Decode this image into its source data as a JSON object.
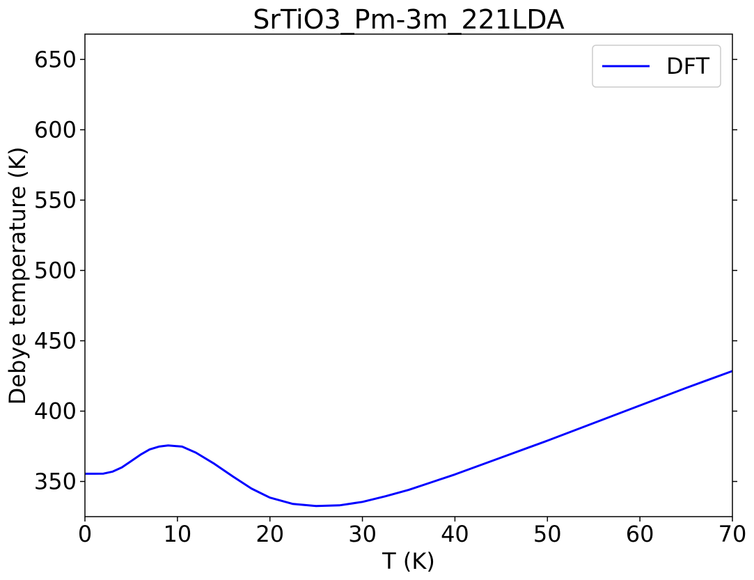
{
  "chart_data": {
    "type": "line",
    "title": "SrTiO3_Pm-3m_221LDA",
    "xlabel": "T (K)",
    "ylabel": "Debye temperature (K)",
    "xlim": [
      0,
      70
    ],
    "ylim": [
      325,
      668
    ],
    "xticks": [
      0,
      10,
      20,
      30,
      40,
      50,
      60,
      70
    ],
    "yticks": [
      350,
      400,
      450,
      500,
      550,
      600,
      650
    ],
    "grid": false,
    "legend_position": "top-right",
    "series": [
      {
        "name": "DFT",
        "color": "#0000ff",
        "x": [
          0,
          1,
          2,
          3,
          4,
          5,
          6,
          7,
          8,
          9,
          10.5,
          12,
          14,
          16,
          18,
          20,
          22.5,
          25,
          27.5,
          30,
          32.5,
          35,
          37.5,
          40,
          45,
          50,
          55,
          60,
          65,
          70
        ],
        "y": [
          355.5,
          355.5,
          355.6,
          357.0,
          360.0,
          364.5,
          369.0,
          372.8,
          374.8,
          375.6,
          374.8,
          370.5,
          362.5,
          353.5,
          345.0,
          338.5,
          334.0,
          332.5,
          333.0,
          335.5,
          339.5,
          344.0,
          349.5,
          355.0,
          367.0,
          379.0,
          391.5,
          404.0,
          416.5,
          428.5
        ]
      }
    ]
  }
}
